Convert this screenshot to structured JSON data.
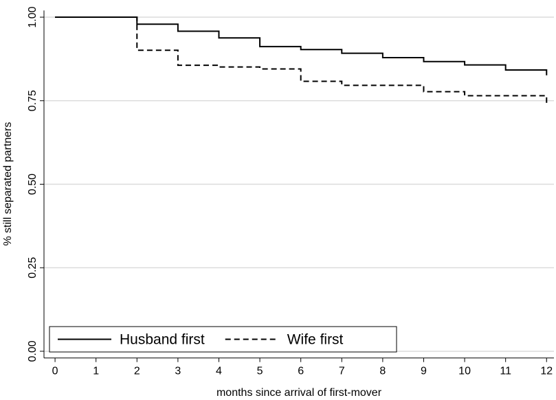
{
  "chart_data": {
    "type": "step",
    "x_label": "months since arrival of first-mover",
    "y_label": "% still separated partners",
    "x": [
      0,
      2,
      3,
      4,
      5,
      6,
      7,
      8,
      9,
      10,
      11,
      12
    ],
    "series": [
      {
        "name": "Husband first",
        "color": "#000000",
        "dash": "solid",
        "values": [
          1,
          0.979,
          0.958,
          0.938,
          0.912,
          0.903,
          0.892,
          0.879,
          0.867,
          0.857,
          0.842,
          0.826
        ]
      },
      {
        "name": "Wife first",
        "color": "#000000",
        "dash": "dashed",
        "values": [
          1,
          0.901,
          0.856,
          0.851,
          0.845,
          0.808,
          0.796,
          0.796,
          0.777,
          0.765,
          0.765,
          0.737
        ]
      }
    ],
    "xlim": [
      -0.27,
      12.18
    ],
    "ylim": [
      -0.02,
      1.02
    ],
    "xticks": [
      0,
      1,
      2,
      3,
      4,
      5,
      6,
      7,
      8,
      9,
      10,
      11,
      12
    ],
    "yticks": [
      {
        "value": 0,
        "label": "0.00"
      },
      {
        "value": 0.25,
        "label": "0.25"
      },
      {
        "value": 0.5,
        "label": "0.50"
      },
      {
        "value": 0.75,
        "label": "0.75"
      },
      {
        "value": 1,
        "label": "1.00"
      }
    ],
    "grid": true,
    "legend": "lower left"
  }
}
